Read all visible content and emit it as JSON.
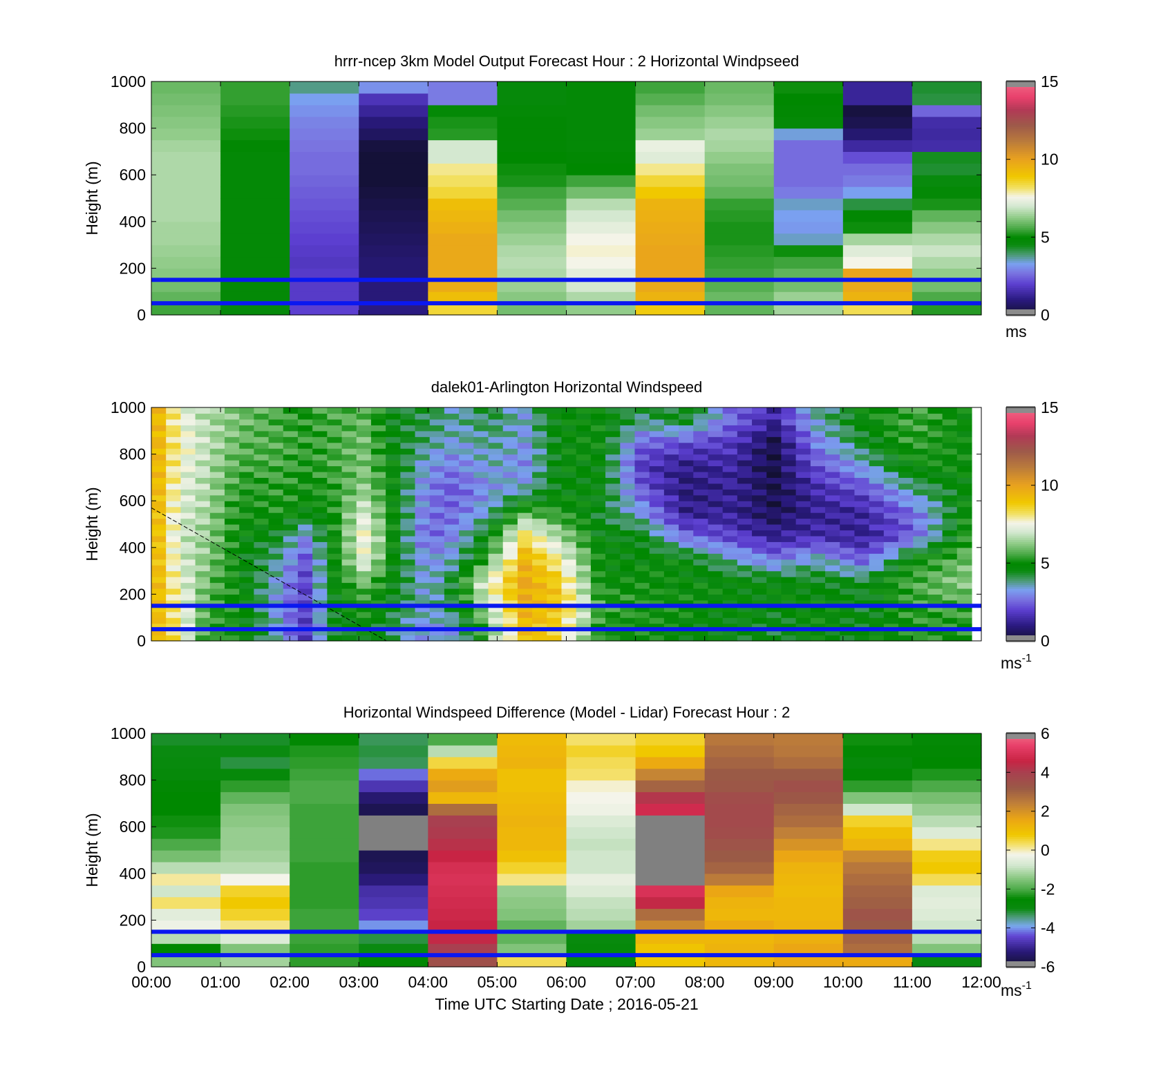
{
  "chart_data": [
    {
      "type": "heatmap",
      "title": "hrrr-ncep 3km Model Output   Forecast Hour : 2 Horizontal Windpseed",
      "ylabel": "Height (m)",
      "ylim": [
        0,
        1000
      ],
      "yticks": [
        "0",
        "200",
        "400",
        "600",
        "800",
        "1000"
      ],
      "x_hours": [
        0,
        12
      ],
      "colorbar": {
        "range": [
          0,
          15
        ],
        "ticks": [
          "0",
          "5",
          "10",
          "15"
        ],
        "unit": "ms",
        "unit_sup": ""
      },
      "reference_lines_m": [
        150,
        50
      ],
      "heights_m": [
        25,
        75,
        125,
        175,
        225,
        275,
        325,
        375,
        425,
        475,
        525,
        575,
        625,
        675,
        725,
        775,
        825,
        875,
        925,
        975
      ],
      "columns": [
        [
          5.5,
          5.8,
          6.0,
          6.2,
          6.3,
          6.4,
          6.5,
          6.5,
          6.6,
          6.6,
          6.6,
          6.6,
          6.6,
          6.6,
          6.5,
          6.3,
          6.2,
          6.1,
          6.0,
          5.9
        ],
        [
          4.7,
          4.8,
          4.8,
          4.8,
          4.8,
          4.8,
          4.8,
          4.8,
          4.8,
          4.8,
          4.8,
          4.8,
          4.8,
          4.8,
          4.9,
          5.1,
          5.2,
          5.3,
          5.4,
          5.4
        ],
        [
          2.0,
          1.9,
          1.9,
          1.9,
          1.8,
          1.9,
          2.0,
          2.1,
          2.2,
          2.3,
          2.4,
          2.5,
          2.6,
          2.6,
          2.7,
          2.8,
          2.9,
          3.1,
          3.3,
          3.8
        ],
        [
          1.0,
          0.9,
          0.9,
          0.8,
          0.8,
          0.7,
          0.6,
          0.5,
          0.4,
          0.3,
          0.2,
          0.1,
          0.1,
          0.1,
          0.2,
          0.6,
          0.9,
          1.3,
          1.7,
          3.1
        ],
        [
          8.5,
          9.2,
          9.7,
          9.8,
          9.8,
          9.8,
          9.8,
          9.6,
          9.4,
          9.2,
          8.5,
          8.2,
          8.0,
          7.0,
          7.0,
          5.3,
          5.2,
          4.8,
          2.8,
          2.8
        ],
        [
          6.0,
          6.2,
          6.4,
          6.6,
          6.7,
          6.6,
          6.4,
          6.2,
          6.0,
          5.7,
          5.5,
          5.2,
          5.1,
          5.0,
          4.9,
          4.9,
          4.9,
          4.8,
          4.7,
          4.7
        ],
        [
          6.3,
          6.6,
          7.0,
          7.3,
          7.6,
          7.7,
          7.6,
          7.3,
          7.0,
          6.7,
          6.0,
          5.5,
          5.0,
          4.9,
          4.8,
          4.8,
          4.8,
          4.8,
          4.8,
          4.8
        ],
        [
          8.8,
          9.5,
          9.8,
          9.9,
          9.9,
          9.9,
          9.8,
          9.7,
          9.6,
          9.5,
          8.9,
          8.5,
          8.0,
          7.2,
          7.4,
          6.4,
          6.2,
          6.0,
          5.7,
          5.5
        ],
        [
          5.8,
          5.9,
          5.7,
          5.5,
          5.4,
          5.3,
          5.2,
          5.2,
          5.3,
          5.4,
          5.8,
          6.0,
          6.1,
          6.3,
          6.5,
          6.6,
          6.4,
          6.2,
          6.0,
          5.9
        ],
        [
          6.5,
          6.4,
          6.0,
          5.8,
          5.5,
          5.1,
          3.5,
          3.2,
          3.3,
          3.5,
          2.8,
          2.6,
          2.6,
          2.6,
          2.6,
          3.4,
          4.8,
          4.9,
          5.0,
          5.1
        ],
        [
          8.3,
          9.5,
          9.8,
          9.9,
          7.6,
          7.2,
          6.5,
          5.1,
          4.9,
          4.2,
          3.3,
          2.8,
          2.6,
          2.2,
          1.4,
          0.8,
          0.4,
          0.2,
          1.3,
          1.3
        ],
        [
          5.3,
          5.6,
          6.0,
          6.3,
          6.6,
          6.9,
          6.6,
          6.2,
          5.8,
          5.2,
          4.8,
          4.6,
          4.3,
          4.4,
          1.5,
          1.4,
          1.5,
          2.5,
          4.2,
          4.3
        ]
      ]
    },
    {
      "type": "heatmap",
      "title": "dalek01-Arlington  Horizontal Windspeed",
      "ylabel": "Height (m)",
      "ylim": [
        0,
        1000
      ],
      "yticks": [
        "0",
        "200",
        "400",
        "600",
        "800",
        "1000"
      ],
      "x_hours": [
        0,
        12
      ],
      "colorbar": {
        "range": [
          0,
          15
        ],
        "ticks": [
          "0",
          "5",
          "10",
          "15"
        ],
        "unit": "ms",
        "unit_sup": "-1"
      },
      "reference_lines_m": [
        150,
        50
      ],
      "lidar_coverage_end_hour": 11.86,
      "lidar_dashed_line": {
        "from": [
          0,
          570
        ],
        "to": [
          3.4,
          0
        ]
      },
      "lidar_keyframes": [
        {
          "h": 0.0,
          "v": [
            9.5,
            9.7,
            9.8,
            9.8,
            9.8,
            9.8,
            9.9,
            9.9,
            9.9,
            9.9
          ]
        },
        {
          "h": 0.4,
          "v": [
            8.0,
            7.8,
            7.5,
            7.2,
            7.0,
            7.2,
            7.4,
            7.6,
            7.8,
            7.6
          ]
        },
        {
          "h": 0.8,
          "v": [
            5.3,
            5.6,
            6.0,
            6.2,
            6.4,
            6.5,
            6.6,
            6.7,
            6.8,
            6.6
          ]
        },
        {
          "h": 1.3,
          "v": [
            5.0,
            5.0,
            4.8,
            4.8,
            4.8,
            5.0,
            5.2,
            5.5,
            5.8,
            6.0
          ]
        },
        {
          "h": 1.9,
          "v": [
            3.2,
            3.0,
            3.2,
            3.6,
            4.4,
            5.2,
            5.4,
            5.6,
            5.6,
            5.5
          ]
        },
        {
          "h": 2.2,
          "v": [
            1.8,
            1.8,
            1.9,
            2.2,
            3.0,
            4.8,
            5.0,
            5.2,
            5.4,
            5.2
          ]
        },
        {
          "h": 2.6,
          "v": [
            4.3,
            4.6,
            4.6,
            4.7,
            4.8,
            5.0,
            5.3,
            5.5,
            5.5,
            5.6
          ]
        },
        {
          "h": 3.1,
          "v": [
            4.8,
            5.2,
            6.0,
            7.4,
            7.8,
            7.2,
            6.3,
            6.1,
            6.0,
            5.8
          ]
        },
        {
          "h": 3.5,
          "v": [
            4.0,
            4.4,
            4.6,
            4.8,
            4.8,
            4.9,
            4.8,
            4.8,
            4.6,
            4.5
          ]
        },
        {
          "h": 4.0,
          "v": [
            3.0,
            3.5,
            3.2,
            3.0,
            2.4,
            2.6,
            2.8,
            3.2,
            3.8,
            4.2
          ]
        },
        {
          "h": 4.4,
          "v": [
            3.4,
            4.4,
            4.6,
            3.6,
            3.1,
            2.6,
            2.3,
            2.8,
            3.4,
            3.6
          ]
        },
        {
          "h": 4.9,
          "v": [
            6.0,
            7.0,
            7.8,
            5.8,
            4.9,
            3.6,
            3.2,
            3.5,
            3.8,
            4.2
          ]
        },
        {
          "h": 5.4,
          "v": [
            9.2,
            9.6,
            9.8,
            9.5,
            8.2,
            5.8,
            3.5,
            3.0,
            3.2,
            3.4
          ]
        },
        {
          "h": 5.9,
          "v": [
            8.5,
            9.0,
            8.8,
            7.8,
            6.5,
            5.2,
            4.8,
            4.8,
            4.8,
            4.9
          ]
        },
        {
          "h": 6.5,
          "v": [
            5.0,
            5.5,
            4.9,
            4.8,
            4.6,
            4.4,
            4.7,
            4.8,
            4.9,
            4.9
          ]
        },
        {
          "h": 7.1,
          "v": [
            5.0,
            5.2,
            5.0,
            4.8,
            4.6,
            3.2,
            2.4,
            1.8,
            2.5,
            4.0
          ]
        },
        {
          "h": 7.7,
          "v": [
            4.8,
            5.0,
            4.9,
            4.8,
            2.6,
            1.2,
            0.9,
            1.1,
            2.2,
            4.6
          ]
        },
        {
          "h": 8.4,
          "v": [
            4.6,
            4.8,
            4.8,
            3.6,
            2.0,
            1.2,
            1.3,
            1.4,
            1.8,
            2.6
          ]
        },
        {
          "h": 9.0,
          "v": [
            4.4,
            4.6,
            4.8,
            2.8,
            1.2,
            0.5,
            0.4,
            0.3,
            0.4,
            1.4
          ]
        },
        {
          "h": 9.6,
          "v": [
            4.8,
            5.0,
            4.6,
            3.6,
            1.6,
            1.2,
            1.5,
            2.2,
            2.8,
            3.6
          ]
        },
        {
          "h": 10.3,
          "v": [
            4.6,
            4.4,
            4.5,
            2.4,
            1.2,
            1.4,
            2.2,
            3.4,
            4.4,
            4.8
          ]
        },
        {
          "h": 11.0,
          "v": [
            5.2,
            5.4,
            5.6,
            5.0,
            2.4,
            2.6,
            3.8,
            5.0,
            5.4,
            5.6
          ]
        },
        {
          "h": 11.86,
          "v": [
            5.2,
            5.6,
            6.3,
            6.0,
            5.6,
            5.2,
            4.9,
            4.9,
            4.8,
            4.8
          ]
        }
      ]
    },
    {
      "type": "heatmap",
      "title": "Horizontal Windspeed Difference (Model - Lidar) Forecast Hour : 2",
      "xlabel": "Time UTC  Starting Date ; 2016-05-21",
      "ylabel": "Height (m)",
      "ylim": [
        0,
        1000
      ],
      "yticks": [
        "0",
        "200",
        "400",
        "600",
        "800",
        "1000"
      ],
      "xticks": [
        "00:00",
        "01:00",
        "02:00",
        "03:00",
        "04:00",
        "05:00",
        "06:00",
        "07:00",
        "08:00",
        "09:00",
        "10:00",
        "11:00",
        "12:00"
      ],
      "x_hours": [
        0,
        12
      ],
      "colorbar": {
        "range": [
          -6,
          6
        ],
        "ticks": [
          "-6",
          "-4",
          "-2",
          "0",
          "2",
          "4",
          "6"
        ],
        "unit": "ms",
        "unit_sup": "-1"
      },
      "reference_lines_m": [
        150,
        50
      ],
      "heights_m": [
        25,
        75,
        125,
        175,
        225,
        275,
        325,
        375,
        425,
        475,
        525,
        575,
        625,
        675,
        725,
        775,
        825,
        875,
        925,
        975
      ],
      "columns": [
        [
          -1.5,
          -2.5,
          -1.0,
          -0.3,
          -0.5,
          0.3,
          -0.8,
          0.1,
          -1.0,
          -1.6,
          -2.0,
          -2.3,
          -2.4,
          -2.5,
          -2.5,
          -2.6,
          -2.8,
          -2.9,
          -3.0,
          -3.1
        ],
        [
          -1.2,
          -1.5,
          -0.6,
          0.2,
          0.6,
          0.8,
          0.6,
          -0.2,
          -1.0,
          -1.2,
          -1.3,
          -1.3,
          -1.4,
          -1.5,
          -1.8,
          -2.2,
          -2.8,
          -3.2,
          -3.0,
          -3.1
        ],
        [
          -2.2,
          -2.2,
          -2.1,
          -2.1,
          -2.1,
          -2.2,
          -2.2,
          -2.2,
          -2.2,
          -2.1,
          -2.1,
          -2.1,
          -2.1,
          -2.1,
          -2.0,
          -2.0,
          -2.1,
          -2.2,
          -2.3,
          -2.6
        ],
        [
          -2.6,
          -3.0,
          -3.2,
          -4.0,
          -4.5,
          -4.7,
          -4.8,
          -5.2,
          -5.5,
          -5.6,
          99,
          99,
          99,
          -5.6,
          -5.3,
          -4.7,
          -4.2,
          -3.3,
          -3.2,
          -3.3
        ],
        [
          3.5,
          4.0,
          4.5,
          4.6,
          4.7,
          4.8,
          4.9,
          5.0,
          4.9,
          4.6,
          4.3,
          4.1,
          4.0,
          2.8,
          1.2,
          1.8,
          1.5,
          0.5,
          -1.0,
          -2.0
        ],
        [
          0.4,
          -1.5,
          -1.8,
          -1.8,
          -1.5,
          -1.4,
          -1.3,
          0.2,
          0.6,
          1.0,
          1.2,
          1.2,
          1.3,
          1.2,
          1.1,
          1.0,
          1.0,
          1.3,
          1.2,
          1.1
        ],
        [
          -2.8,
          -2.8,
          -2.9,
          -1.2,
          -1.0,
          -0.9,
          -0.6,
          -0.4,
          -0.8,
          -0.8,
          -0.9,
          -0.8,
          -0.6,
          -0.3,
          -0.2,
          -0.1,
          0.3,
          0.4,
          0.6,
          0.3
        ],
        [
          0.8,
          0.9,
          1.2,
          2.2,
          2.8,
          4.5,
          5.0,
          99,
          99,
          99,
          99,
          99,
          99,
          4.8,
          4.2,
          3.0,
          2.3,
          1.5,
          0.8,
          0.6
        ],
        [
          1.2,
          1.3,
          1.2,
          1.5,
          1.2,
          1.3,
          1.6,
          2.5,
          3.0,
          3.2,
          3.4,
          3.6,
          3.7,
          3.7,
          3.6,
          3.3,
          3.2,
          3.0,
          2.8,
          2.6
        ],
        [
          1.5,
          1.6,
          1.4,
          1.3,
          1.2,
          1.2,
          1.1,
          1.2,
          1.3,
          1.6,
          2.0,
          2.4,
          2.8,
          3.0,
          3.3,
          3.5,
          3.2,
          2.8,
          2.6,
          2.5
        ],
        [
          1.5,
          2.8,
          3.0,
          3.2,
          3.4,
          3.1,
          3.0,
          2.8,
          2.6,
          2.2,
          1.3,
          1.0,
          0.6,
          -0.8,
          -1.5,
          -2.2,
          -2.6,
          -2.8,
          -2.6,
          -2.4
        ],
        [
          -3.0,
          -1.5,
          -1.0,
          -0.8,
          -0.6,
          -0.5,
          -0.6,
          0.4,
          0.8,
          0.7,
          0.2,
          -0.6,
          -1.0,
          -1.3,
          -1.6,
          -2.0,
          -2.3,
          -2.5,
          -2.6,
          -2.7
        ]
      ]
    }
  ]
}
